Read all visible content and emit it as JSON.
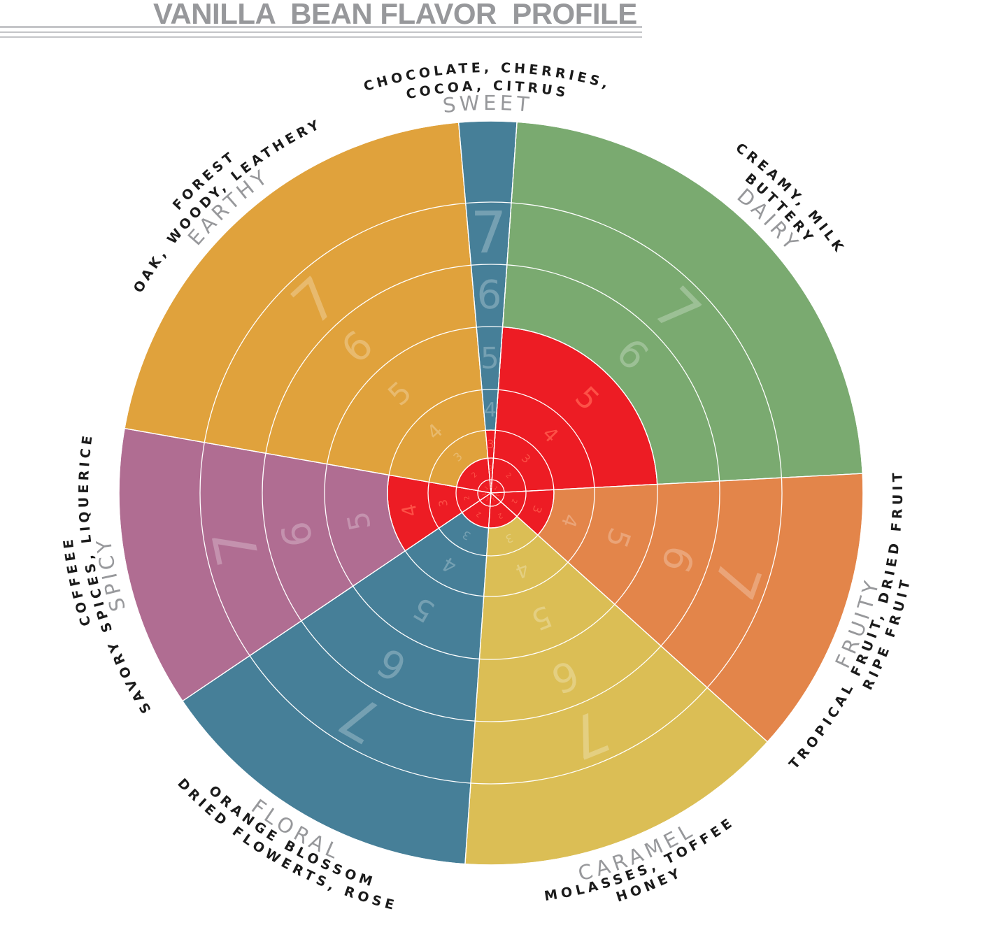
{
  "title": "VANILLA  BEAN FLAVOR  PROFILE",
  "colors": {
    "highlight": "#ed1c24",
    "grid": "#ffffff",
    "category_label": "#97989b",
    "descriptor": "#1b1b1b"
  },
  "chart_data": {
    "type": "radial-bar",
    "title": "VANILLA  BEAN FLAVOR  PROFILE",
    "scale_max": 7,
    "ring_labels": [
      "1",
      "2",
      "3",
      "4",
      "5",
      "6",
      "7"
    ],
    "categories": [
      {
        "name": "DAIRY",
        "value": 5,
        "color": "#7aaa70",
        "descriptors": [
          "CREAMY, MILK",
          "BUTTERY"
        ]
      },
      {
        "name": "FRUITY",
        "value": 3,
        "color": "#e3854a",
        "descriptors": [
          "TROPICAL FRUIT, DRIED FRUIT",
          "RIPE FRUIT"
        ]
      },
      {
        "name": "CARAMEL",
        "value": 2,
        "color": "#dbbe55",
        "descriptors": [
          "MOLASSES, TOFFEE",
          "HONEY"
        ]
      },
      {
        "name": "FLORAL",
        "value": 2,
        "color": "#467f98",
        "descriptors": [
          "ORANGE BLOSSOM",
          "DRIED FLOWERTS, ROSE"
        ]
      },
      {
        "name": "SPICY",
        "value": 4,
        "color": "#b06d92",
        "descriptors": [
          "COFFEEE",
          "SAVORY SPICES, LIQUERICE"
        ]
      },
      {
        "name": "EARTHY",
        "value": 2,
        "color": "#e0a23c",
        "descriptors": [
          "FOREST",
          "OAK, WOODY, LEATHERY"
        ]
      },
      {
        "name": "SWEET",
        "value": 3,
        "color": "#467f98",
        "descriptors": [
          "CHOCOLATE, CHERRIES,",
          "COCOA, CITRUS"
        ]
      }
    ]
  }
}
